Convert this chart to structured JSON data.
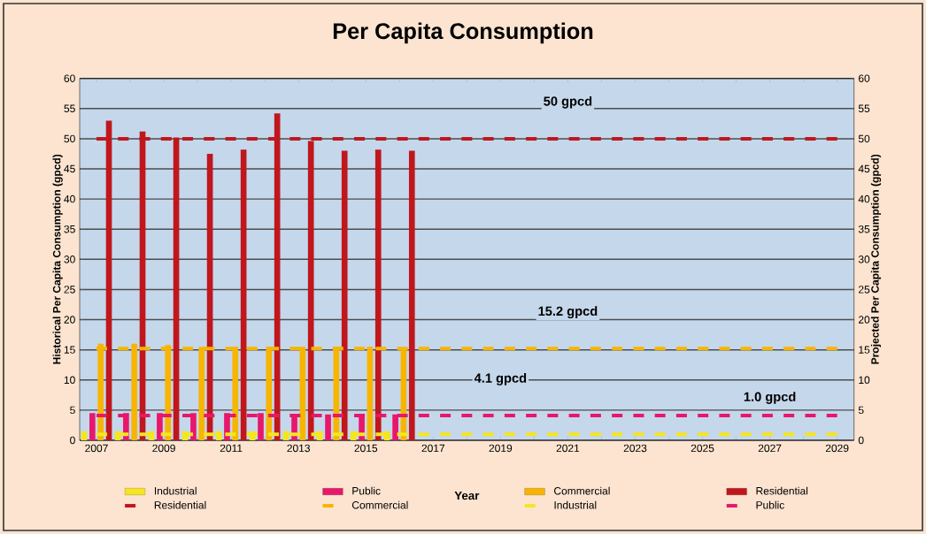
{
  "chart_data": {
    "type": "bar",
    "title": "Per Capita Consumption",
    "xlabel": "Year",
    "ylabel": "Historical Per Capita Consumption (gpcd)",
    "y2label": "Projected Per Capita Consumption (gpcd)",
    "categories": [
      "2007",
      null,
      "2009",
      null,
      "2011",
      null,
      "2013",
      null,
      "2015",
      null,
      "2017",
      null,
      "2019",
      null,
      "2021",
      null,
      "2023",
      null,
      "2025",
      null,
      "2027",
      null,
      "2029"
    ],
    "ylim": [
      0,
      60
    ],
    "yticks": [
      0,
      5,
      10,
      15,
      20,
      25,
      30,
      35,
      40,
      45,
      50,
      55,
      60
    ],
    "y2lim": [
      0,
      60
    ],
    "y2ticks": [
      0,
      5,
      10,
      15,
      20,
      25,
      30,
      35,
      40,
      45,
      50,
      55,
      60
    ],
    "grid": "y",
    "legend": "bottom",
    "series": [
      {
        "name": "Industrial",
        "color": "#f5e61e",
        "values": [
          1.5,
          1.5,
          1.5,
          1.5,
          1.5,
          1.5,
          1.5,
          1.5,
          1.5,
          1.5,
          null,
          null,
          null,
          null,
          null,
          null,
          null,
          null,
          null,
          null,
          null,
          null,
          null
        ]
      },
      {
        "name": "Public",
        "color": "#e8176b",
        "values": [
          4.5,
          4.5,
          4.5,
          4.5,
          4.5,
          4.5,
          4.3,
          4.3,
          4.3,
          4.3,
          null,
          null,
          null,
          null,
          null,
          null,
          null,
          null,
          null,
          null,
          null,
          null,
          null
        ]
      },
      {
        "name": "Commercial",
        "color": "#f7b500",
        "values": [
          16,
          16,
          15.8,
          15.5,
          15.5,
          15.5,
          15.5,
          15.5,
          15.5,
          15.2,
          null,
          null,
          null,
          null,
          null,
          null,
          null,
          null,
          null,
          null,
          null,
          null,
          null
        ]
      },
      {
        "name": "Residential",
        "color": "#c0171d",
        "values": [
          53,
          51.2,
          50.2,
          47.5,
          48.2,
          54.2,
          49.6,
          48,
          48.2,
          48,
          null,
          null,
          null,
          null,
          null,
          null,
          null,
          null,
          null,
          null,
          null,
          null,
          null
        ]
      },
      {
        "name": "Residential",
        "type": "line",
        "axis": "y2",
        "line_style": "dashed",
        "color": "#c0171d",
        "values": [
          50,
          50,
          50,
          50,
          50,
          50,
          50,
          50,
          50,
          50,
          50,
          50,
          50,
          50,
          50,
          50,
          50,
          50,
          50,
          50,
          50,
          50,
          50
        ]
      },
      {
        "name": "Commercial",
        "type": "line",
        "axis": "y2",
        "line_style": "dashed",
        "color": "#f7b500",
        "values": [
          15.2,
          15.2,
          15.2,
          15.2,
          15.2,
          15.2,
          15.2,
          15.2,
          15.2,
          15.2,
          15.2,
          15.2,
          15.2,
          15.2,
          15.2,
          15.2,
          15.2,
          15.2,
          15.2,
          15.2,
          15.2,
          15.2,
          15.2
        ]
      },
      {
        "name": "Industrial",
        "type": "line",
        "axis": "y2",
        "line_style": "dashed",
        "color": "#f5e61e",
        "values": [
          1.0,
          1.0,
          1.0,
          1.0,
          1.0,
          1.0,
          1.0,
          1.0,
          1.0,
          1.0,
          1.0,
          1.0,
          1.0,
          1.0,
          1.0,
          1.0,
          1.0,
          1.0,
          1.0,
          1.0,
          1.0,
          1.0,
          1.0
        ]
      },
      {
        "name": "Public",
        "type": "line",
        "axis": "y2",
        "line_style": "dashed",
        "color": "#e8176b",
        "values": [
          4.1,
          4.1,
          4.1,
          4.1,
          4.1,
          4.1,
          4.1,
          4.1,
          4.1,
          4.1,
          4.1,
          4.1,
          4.1,
          4.1,
          4.1,
          4.1,
          4.1,
          4.1,
          4.1,
          4.1,
          4.1,
          4.1,
          4.1
        ]
      }
    ],
    "annotations": [
      {
        "text": "50 gpcd",
        "x": "2021",
        "y": 50
      },
      {
        "text": "15.2 gpcd",
        "x": "2021",
        "y": 15.2
      },
      {
        "text": "4.1 gpcd",
        "x": "2019",
        "y": 4.1
      },
      {
        "text": "1.0 gpcd",
        "x": "2027",
        "y": 1.0
      }
    ]
  }
}
